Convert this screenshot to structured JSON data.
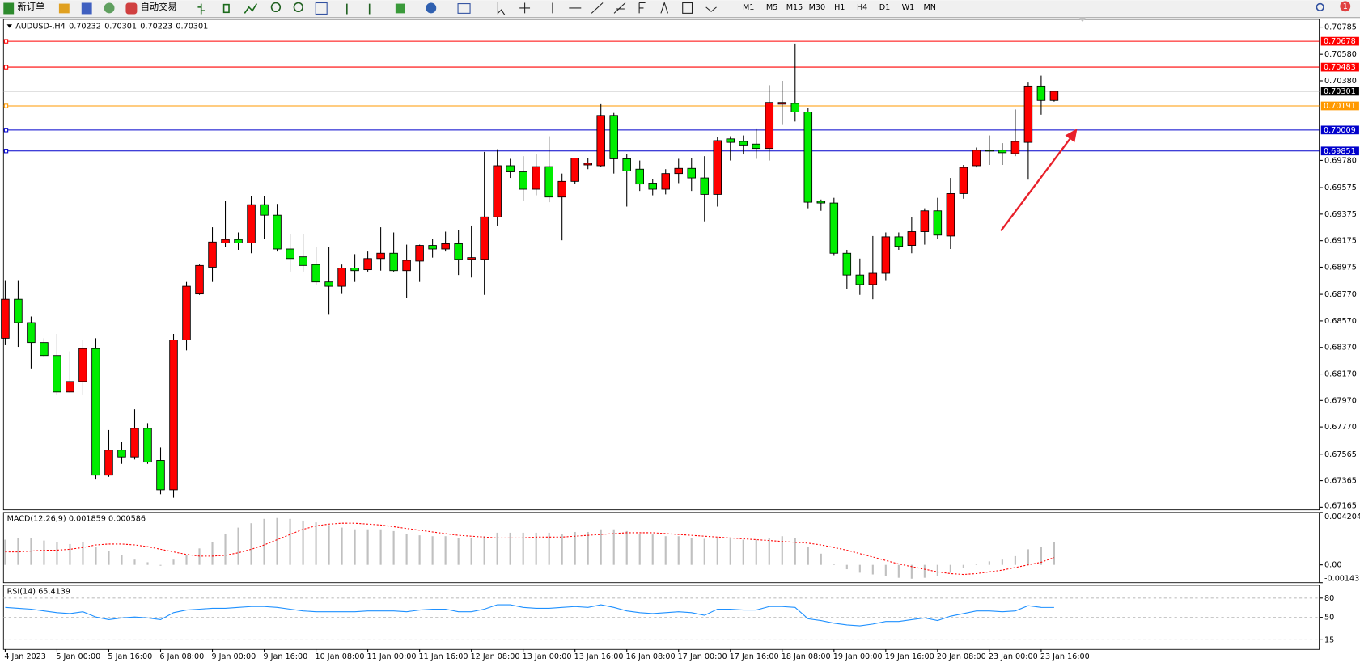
{
  "toolbar": {
    "new_order": "新订单",
    "auto_trading": "自动交易",
    "timeframes": [
      "M1",
      "M5",
      "M15",
      "M30",
      "H1",
      "H4",
      "D1",
      "W1",
      "MN"
    ],
    "notifications": 1
  },
  "chart_data": [
    {
      "type": "candlestick",
      "symbol": "AUDUSD-,H4",
      "up_color": "#ff0000",
      "down_color": "#00ee00",
      "categories": [
        "4 Jan 2023",
        null,
        null,
        null,
        "5 Jan 00:00",
        null,
        null,
        null,
        "5 Jan 16:00",
        null,
        null,
        null,
        "6 Jan 08:00",
        null,
        null,
        null,
        "9 Jan 00:00",
        null,
        null,
        null,
        "9 Jan 16:00",
        null,
        null,
        null,
        "10 Jan 08:00",
        null,
        null,
        null,
        "11 Jan 00:00",
        null,
        null,
        null,
        "11 Jan 16:00",
        null,
        null,
        null,
        "12 Jan 08:00",
        null,
        null,
        null,
        "13 Jan 00:00",
        null,
        null,
        null,
        "13 Jan 16:00",
        null,
        null,
        null,
        "16 Jan 08:00",
        null,
        null,
        null,
        "17 Jan 00:00",
        null,
        null,
        null,
        "17 Jan 16:00",
        null,
        null,
        null,
        "18 Jan 08:00",
        null,
        null,
        null,
        "19 Jan 00:00",
        null,
        null,
        null,
        "19 Jan 16:00",
        null,
        null,
        null,
        "20 Jan 08:00",
        null,
        null,
        null,
        "23 Jan 00:00",
        null,
        null,
        null,
        "23 Jan 16:00",
        null
      ],
      "open": [
        0.68439,
        0.68733,
        0.68557,
        0.68407,
        0.68309,
        0.68034,
        0.68113,
        0.68361,
        0.67407,
        0.67596,
        0.67544,
        0.6776,
        0.67518,
        0.67296,
        0.68426,
        0.68773,
        0.68975,
        0.69158,
        0.69184,
        0.69158,
        0.69446,
        0.69367,
        0.69112,
        0.69053,
        0.68995,
        0.68864,
        0.68831,
        0.68969,
        0.68956,
        0.6904,
        0.6908,
        0.68949,
        0.69021,
        0.69139,
        0.69112,
        0.69152,
        0.69034,
        0.69034,
        0.69354,
        0.6974,
        0.69694,
        0.69563,
        0.69733,
        0.69504,
        0.69622,
        0.69746,
        0.6974,
        0.70119,
        0.69792,
        0.69714,
        0.69609,
        0.69563,
        0.69681,
        0.6972,
        0.69648,
        0.69524,
        0.69942,
        0.69923,
        0.69903,
        0.6987,
        0.70204,
        0.7021,
        0.70145,
        0.69472,
        0.69459,
        0.6908,
        0.68916,
        0.68844,
        0.68929,
        0.69204,
        0.69139,
        0.69243,
        0.694,
        0.6921,
        0.6953,
        0.6974,
        0.69857,
        0.69857,
        0.69831,
        0.69916,
        0.70341,
        0.70232
      ],
      "high": [
        0.68877,
        0.68877,
        0.68603,
        0.68439,
        0.68472,
        0.68341,
        0.68426,
        0.68439,
        0.67747,
        0.67655,
        0.67904,
        0.67799,
        0.67616,
        0.68472,
        0.68864,
        0.68995,
        0.69276,
        0.69472,
        0.69237,
        0.69511,
        0.69511,
        0.69452,
        0.69223,
        0.69223,
        0.69125,
        0.69125,
        0.68995,
        0.69073,
        0.69093,
        0.69276,
        0.69237,
        0.69145,
        0.69145,
        0.69191,
        0.69243,
        0.69256,
        0.69289,
        0.69844,
        0.69864,
        0.69792,
        0.69812,
        0.69825,
        0.69962,
        0.69681,
        0.69798,
        0.69798,
        0.70204,
        0.70138,
        0.69831,
        0.69779,
        0.69642,
        0.69714,
        0.69792,
        0.69798,
        0.69812,
        0.69955,
        0.69962,
        0.69968,
        0.70021,
        0.70347,
        0.7038,
        0.70661,
        0.70177,
        0.69485,
        0.69498,
        0.69106,
        0.6904,
        0.6921,
        0.69237,
        0.69237,
        0.69354,
        0.69419,
        0.69498,
        0.69648,
        0.69746,
        0.69877,
        0.69968,
        0.6991,
        0.70164,
        0.70367,
        0.70419,
        0.70301
      ],
      "low": [
        0.68387,
        0.68374,
        0.68211,
        0.68296,
        0.68015,
        0.68028,
        0.68015,
        0.67374,
        0.67394,
        0.67492,
        0.67525,
        0.67492,
        0.67263,
        0.67237,
        0.68348,
        0.68766,
        0.68864,
        0.69125,
        0.69106,
        0.6908,
        0.69191,
        0.69093,
        0.68942,
        0.68942,
        0.68844,
        0.68622,
        0.68773,
        0.68864,
        0.68942,
        0.68949,
        0.68942,
        0.68746,
        0.68864,
        0.69047,
        0.69093,
        0.68916,
        0.68897,
        0.68766,
        0.69289,
        0.69648,
        0.69478,
        0.69517,
        0.69465,
        0.69178,
        0.69602,
        0.69714,
        0.69733,
        0.69681,
        0.69432,
        0.6955,
        0.69517,
        0.69524,
        0.69609,
        0.6955,
        0.69321,
        0.69432,
        0.69779,
        0.69825,
        0.69792,
        0.69779,
        0.70053,
        0.70073,
        0.69419,
        0.694,
        0.6906,
        0.68812,
        0.68766,
        0.68733,
        0.68877,
        0.69106,
        0.6908,
        0.69145,
        0.69191,
        0.69112,
        0.69491,
        0.69727,
        0.69746,
        0.69746,
        0.69812,
        0.69635,
        0.70125,
        0.70223
      ],
      "close": [
        0.68733,
        0.68557,
        0.68407,
        0.68309,
        0.68034,
        0.68113,
        0.68361,
        0.67407,
        0.67596,
        0.67544,
        0.6776,
        0.67505,
        0.67296,
        0.68426,
        0.68831,
        0.68988,
        0.69165,
        0.69184,
        0.69158,
        0.69446,
        0.69367,
        0.69112,
        0.6904,
        0.68988,
        0.68864,
        0.68831,
        0.68969,
        0.68949,
        0.6904,
        0.6908,
        0.68949,
        0.69027,
        0.69139,
        0.69112,
        0.69152,
        0.69034,
        0.69047,
        0.69354,
        0.6974,
        0.69694,
        0.69563,
        0.69733,
        0.69504,
        0.69622,
        0.69798,
        0.69759,
        0.70119,
        0.69792,
        0.697,
        0.69602,
        0.69563,
        0.69681,
        0.6972,
        0.69648,
        0.69524,
        0.69929,
        0.69916,
        0.69896,
        0.6987,
        0.70217,
        0.70217,
        0.70145,
        0.69465,
        0.69459,
        0.6908,
        0.68916,
        0.68844,
        0.68929,
        0.69204,
        0.69132,
        0.69243,
        0.694,
        0.69217,
        0.6953,
        0.69727,
        0.69857,
        0.69851,
        0.69838,
        0.69923,
        0.70341,
        0.70232,
        0.70301
      ],
      "ylim": [
        0.67145,
        0.70844
      ],
      "yticks": [
        0.70785,
        {
          "value": 0.7058,
          "label": "0.70580"
        },
        {
          "value": 0.7038,
          "label": "0.70380"
        },
        {
          "value": 0.6978,
          "label": "0.69780"
        },
        0.69575,
        0.69375,
        0.69175,
        0.68975,
        {
          "value": 0.6877,
          "label": "0.68770"
        },
        {
          "value": 0.6857,
          "label": "0.68570"
        },
        {
          "value": 0.6837,
          "label": "0.68370"
        },
        {
          "value": 0.6817,
          "label": "0.68170"
        },
        {
          "value": 0.6797,
          "label": "0.67970"
        },
        {
          "value": 0.6777,
          "label": "0.67770"
        },
        0.67565,
        0.67365,
        0.67165
      ],
      "levels": [
        {
          "value": 0.70678,
          "color": "#ff0000"
        },
        {
          "value": 0.70483,
          "color": "#ff0000"
        },
        {
          "value": 0.70191,
          "color": "#ff9900"
        },
        {
          "value": 0.70009,
          "color": "#0000cc"
        },
        {
          "value": 0.69851,
          "color": "#0000cc"
        }
      ],
      "bid_color": "#c0c0c0"
    },
    {
      "type": "macd",
      "title": "MACD(12,26,9)",
      "histogram": {
        "color": "#c0c0c0",
        "values": [
          0.00202,
          0.00216,
          0.00216,
          0.00195,
          0.00181,
          0.00167,
          0.00181,
          0.00146,
          0.00111,
          0.00077,
          0.00042,
          0.00021,
          -7e-05,
          0.00042,
          0.00077,
          0.00132,
          0.00181,
          0.00251,
          0.00299,
          0.00334,
          0.00369,
          0.00376,
          0.00369,
          0.00355,
          0.00341,
          0.0032,
          0.00299,
          0.00285,
          0.00285,
          0.00285,
          0.00271,
          0.00251,
          0.00237,
          0.0023,
          0.0023,
          0.00216,
          0.00216,
          0.0023,
          0.00258,
          0.00258,
          0.00258,
          0.00258,
          0.00258,
          0.00251,
          0.00264,
          0.00264,
          0.00285,
          0.00285,
          0.00271,
          0.00251,
          0.00244,
          0.0023,
          0.0023,
          0.00216,
          0.00209,
          0.00216,
          0.00216,
          0.00202,
          0.00202,
          0.00216,
          0.0023,
          0.00216,
          0.00146,
          0.0009,
          7e-05,
          -0.00035,
          -0.00063,
          -0.00077,
          -0.0009,
          -0.00104,
          -0.00111,
          -0.00104,
          -0.0009,
          -0.00063,
          -0.00028,
          7e-05,
          0.00028,
          0.00042,
          0.0007,
          0.00125,
          0.00146,
          0.001859
        ]
      },
      "signal": {
        "color": "#ff0000",
        "values": [
          0.00104,
          0.00104,
          0.00111,
          0.00118,
          0.00118,
          0.00125,
          0.00139,
          0.0016,
          0.00167,
          0.00167,
          0.0016,
          0.00146,
          0.00125,
          0.00104,
          0.00084,
          0.0007,
          0.0007,
          0.00077,
          0.00097,
          0.00125,
          0.0016,
          0.00202,
          0.00244,
          0.00285,
          0.00313,
          0.00327,
          0.00334,
          0.00334,
          0.00327,
          0.0032,
          0.00306,
          0.00292,
          0.00278,
          0.00264,
          0.00251,
          0.00237,
          0.0023,
          0.00223,
          0.00216,
          0.00216,
          0.00216,
          0.00223,
          0.00223,
          0.00223,
          0.0023,
          0.00237,
          0.00244,
          0.00251,
          0.00258,
          0.00258,
          0.00258,
          0.00251,
          0.00244,
          0.00237,
          0.0023,
          0.00223,
          0.00216,
          0.00209,
          0.00202,
          0.00195,
          0.00188,
          0.00181,
          0.00174,
          0.0016,
          0.00139,
          0.00118,
          0.0009,
          0.00063,
          0.00035,
          7e-05,
          -0.00014,
          -0.00035,
          -0.00056,
          -0.0007,
          -0.00077,
          -0.0007,
          -0.00056,
          -0.00042,
          -0.00021,
          0,
          0.00021,
          0.000586
        ]
      },
      "ylim": [
        -0.001431,
        0.004204
      ],
      "yticks": [
        0.004204,
        {
          "value": 0,
          "label": "0.00"
        },
        -0.001431
      ]
    },
    {
      "type": "line",
      "title": "RSI(14)",
      "color": "#1e90ff",
      "values": [
        65.5,
        64.1,
        62.7,
        60.0,
        57.3,
        55.9,
        58.7,
        50.5,
        46.4,
        49.1,
        50.5,
        49.1,
        46.4,
        57.3,
        61.4,
        62.7,
        64.1,
        64.1,
        65.5,
        66.8,
        66.8,
        65.5,
        62.7,
        60.0,
        58.7,
        58.7,
        58.7,
        58.7,
        60.0,
        60.0,
        60.0,
        58.7,
        61.4,
        62.7,
        62.7,
        58.7,
        58.7,
        62.7,
        69.6,
        69.6,
        65.5,
        64.1,
        64.1,
        65.5,
        66.8,
        65.5,
        69.6,
        65.5,
        60.0,
        57.3,
        55.9,
        57.3,
        58.7,
        57.3,
        53.2,
        62.7,
        62.7,
        61.4,
        61.4,
        66.8,
        66.8,
        65.5,
        47.7,
        45.0,
        40.9,
        38.2,
        36.8,
        39.6,
        43.6,
        43.6,
        46.4,
        49.1,
        45.0,
        51.8,
        55.9,
        60.0,
        60.0,
        58.7,
        60.0,
        68.2,
        65.5,
        65.4139
      ],
      "ylim": [
        0,
        100
      ],
      "yticks": [
        80,
        50,
        15
      ],
      "grid": true
    }
  ]
}
